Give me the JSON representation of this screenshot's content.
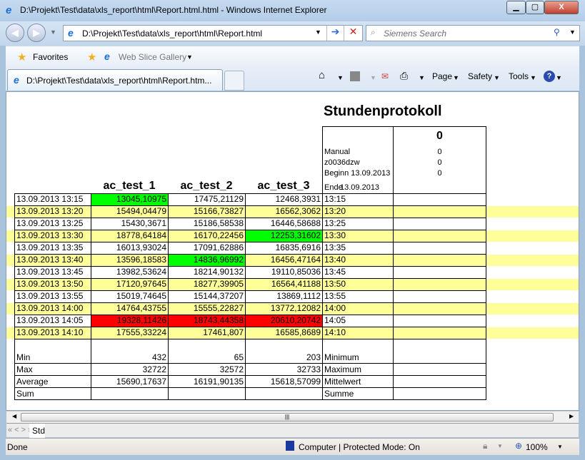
{
  "window": {
    "title": "D:\\Projekt\\Test\\data\\xls_report\\html\\Report.html.html - Windows Internet Explorer",
    "minimize": "▁",
    "maximize": "▢",
    "close": "X"
  },
  "nav": {
    "address": "D:\\Projekt\\Test\\data\\xls_report\\html\\Report.html",
    "search_placeholder": "Siemens Search"
  },
  "favorites": {
    "favorites_label": "Favorites",
    "web_slice": "Web Slice Gallery"
  },
  "tab": {
    "label": "D:\\Projekt\\Test\\data\\xls_report\\html\\Report.htm..."
  },
  "commands": {
    "page": "Page",
    "safety": "Safety",
    "tools": "Tools"
  },
  "report": {
    "title": "Stundenprotokoll",
    "info": {
      "mode": "Manual",
      "user": "z0036dzw",
      "begin": "Beginn 13.09.2013",
      "end_label": "Ende",
      "end_date": "13.09.2013",
      "big_value": "0",
      "values": [
        "0",
        "0",
        "0"
      ]
    },
    "columns": [
      "ac_test_1",
      "ac_test_2",
      "ac_test_3"
    ],
    "colors": {
      "highlight_row": "#ffff99",
      "low": "#00ff00",
      "high": "#ff0000"
    },
    "rows": [
      {
        "ts": "13.09.2013 13:15",
        "v": [
          "13045,10975",
          "17475,21129",
          "12468,3931"
        ],
        "t": "13:15",
        "hl": [
          "low",
          "",
          ""
        ]
      },
      {
        "ts": "13.09.2013 13:20",
        "v": [
          "15494,04479",
          "15166,73827",
          "16562,3062"
        ],
        "t": "13:20",
        "hl": [
          "",
          "",
          ""
        ]
      },
      {
        "ts": "13.09.2013 13:25",
        "v": [
          "15430,3671",
          "15186,58538",
          "16446,58688"
        ],
        "t": "13:25",
        "hl": [
          "",
          "",
          ""
        ]
      },
      {
        "ts": "13.09.2013 13:30",
        "v": [
          "18778,64184",
          "16170,22456",
          "12253,31602"
        ],
        "t": "13:30",
        "hl": [
          "",
          "",
          "low"
        ]
      },
      {
        "ts": "13.09.2013 13:35",
        "v": [
          "16013,93024",
          "17091,62886",
          "16835,6916"
        ],
        "t": "13:35",
        "hl": [
          "",
          "",
          ""
        ]
      },
      {
        "ts": "13.09.2013 13:40",
        "v": [
          "13596,18583",
          "14836,96992",
          "16456,47164"
        ],
        "t": "13:40",
        "hl": [
          "",
          "low",
          ""
        ]
      },
      {
        "ts": "13.09.2013 13:45",
        "v": [
          "13982,53624",
          "18214,90132",
          "19110,85036"
        ],
        "t": "13:45",
        "hl": [
          "",
          "",
          ""
        ]
      },
      {
        "ts": "13.09.2013 13:50",
        "v": [
          "17120,97645",
          "18277,39905",
          "16564,41188"
        ],
        "t": "13:50",
        "hl": [
          "",
          "",
          ""
        ]
      },
      {
        "ts": "13.09.2013 13:55",
        "v": [
          "15019,74645",
          "15144,37207",
          "13869,1112"
        ],
        "t": "13:55",
        "hl": [
          "",
          "",
          ""
        ]
      },
      {
        "ts": "13.09.2013 14:00",
        "v": [
          "14764,43755",
          "15555,22827",
          "13772,12082"
        ],
        "t": "14:00",
        "hl": [
          "",
          "",
          ""
        ]
      },
      {
        "ts": "13.09.2013 14:05",
        "v": [
          "19328,11426",
          "18743,44358",
          "20610,20742"
        ],
        "t": "14:05",
        "hl": [
          "high",
          "high",
          "high"
        ]
      },
      {
        "ts": "13.09.2013 14:10",
        "v": [
          "17555,33224",
          "17461,807",
          "16585,8689"
        ],
        "t": "14:10",
        "hl": [
          "",
          "",
          ""
        ]
      }
    ],
    "stats": [
      {
        "label": "Min",
        "v": [
          "432",
          "65",
          "203"
        ],
        "de": "Minimum"
      },
      {
        "label": "Max",
        "v": [
          "32722",
          "32572",
          "32733"
        ],
        "de": "Maximum"
      },
      {
        "label": "Average",
        "v": [
          "15690,17637",
          "16191,90135",
          "15618,57099"
        ],
        "de": "Mittelwert"
      },
      {
        "label": "Sum",
        "v": [
          "",
          "",
          ""
        ],
        "de": "Summe"
      }
    ]
  },
  "sheet_tabs": {
    "nav": "« < > »",
    "active": "Std"
  },
  "status": {
    "text": "Done",
    "zone": "Computer | Protected Mode: On",
    "zoom": "100%"
  }
}
